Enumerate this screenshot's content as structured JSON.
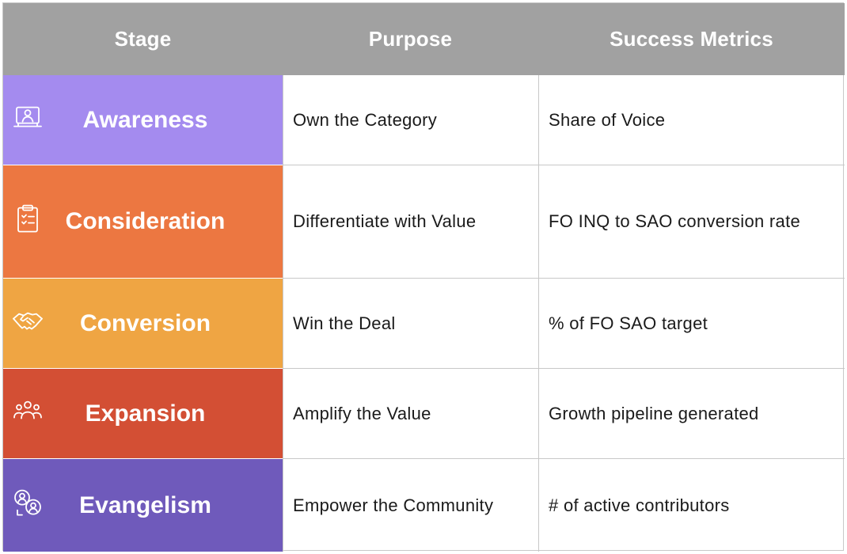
{
  "header": {
    "stage": "Stage",
    "purpose": "Purpose",
    "metrics": "Success Metrics"
  },
  "rows": [
    {
      "stage": "Awareness",
      "purpose": "Own the Category",
      "metric": "Share of Voice",
      "color": "#a48bef",
      "icon": "presenter-screen-icon"
    },
    {
      "stage": "Consideration",
      "purpose": "Differentiate with Value",
      "metric": "FO INQ to SAO conversion rate",
      "color": "#ec7741",
      "icon": "clipboard-checklist-icon"
    },
    {
      "stage": "Conversion",
      "purpose": "Win the Deal",
      "metric": "% of FO SAO target",
      "color": "#efa543",
      "icon": "handshake-icon"
    },
    {
      "stage": "Expansion",
      "purpose": "Amplify the Value",
      "metric": "Growth pipeline generated",
      "color": "#d34f34",
      "icon": "group-people-icon"
    },
    {
      "stage": "Evangelism",
      "purpose": "Empower the Community",
      "metric": "# of active contributors",
      "color": "#6f5abb",
      "icon": "community-speakers-icon"
    }
  ],
  "colors": {
    "header_bg": "#a1a1a1",
    "grid_line": "#c8c8c8"
  }
}
